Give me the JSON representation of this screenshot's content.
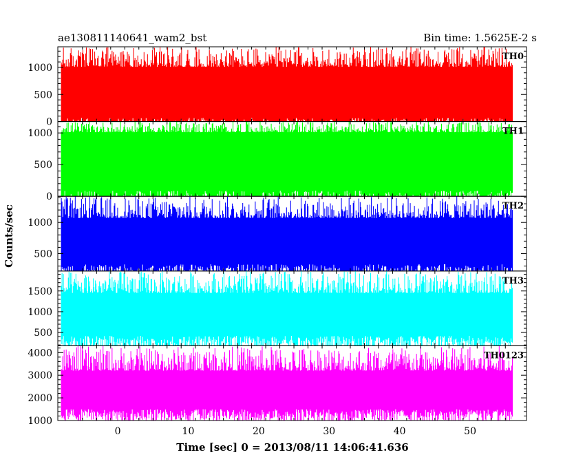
{
  "chart_data": {
    "type": "line",
    "title": "ae130811140641_wam2_bst",
    "subtitle": "Bin time: 1.5625E-2 s",
    "xlabel": "Time [sec] 0 = 2013/08/11 14:06:41.636",
    "ylabel": "Counts/sec",
    "xlim": [
      -8.5,
      58
    ],
    "x_ticks": [
      0,
      10,
      20,
      30,
      40,
      50
    ],
    "x_data_range": [
      -8,
      56
    ],
    "grid": false,
    "panels": [
      {
        "name": "TH0",
        "color": "#ff0000",
        "ylim": [
          0,
          1380
        ],
        "y_ticks": [
          0,
          500,
          1000
        ],
        "band": [
          70,
          1010
        ],
        "peak": 1380,
        "floor": 0
      },
      {
        "name": "TH1",
        "color": "#00ff00",
        "ylim": [
          0,
          1180
        ],
        "y_ticks": [
          0,
          500,
          1000
        ],
        "band": [
          90,
          1010
        ],
        "peak": 1180,
        "floor": 0
      },
      {
        "name": "TH2",
        "color": "#0000ff",
        "ylim": [
          220,
          1420
        ],
        "y_ticks": [
          500,
          1000
        ],
        "band": [
          330,
          1070
        ],
        "peak": 1420,
        "floor": 220
      },
      {
        "name": "TH3",
        "color": "#00ffff",
        "ylim": [
          180,
          1980
        ],
        "y_ticks": [
          500,
          1000,
          1500
        ],
        "band": [
          420,
          1450
        ],
        "peak": 1980,
        "floor": 180
      },
      {
        "name": "TH0123",
        "color": "#ff00ff",
        "ylim": [
          1000,
          4300
        ],
        "y_ticks": [
          1000,
          2000,
          3000,
          4000
        ],
        "band": [
          1500,
          3200
        ],
        "peak": 4300,
        "floor": 1000
      }
    ]
  }
}
